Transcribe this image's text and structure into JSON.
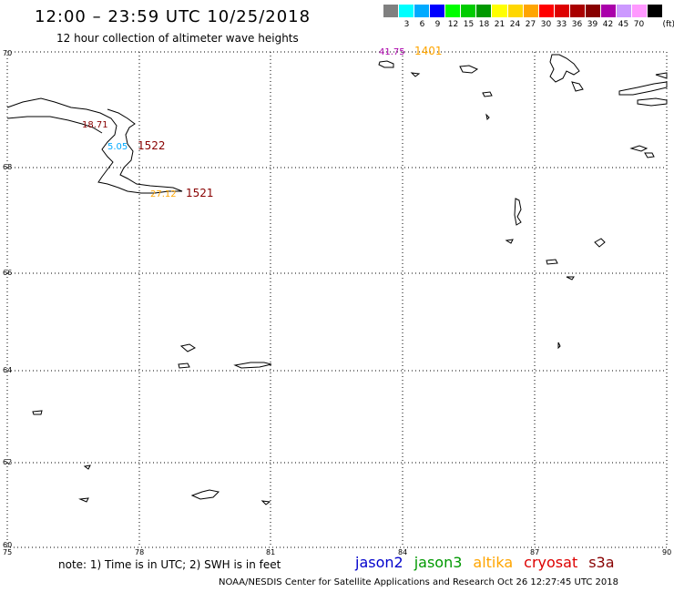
{
  "header": {
    "title": "12:00 – 23:59 UTC 10/25/2018",
    "subtitle": "12 hour collection of altimeter wave heights"
  },
  "legend": {
    "colors": [
      "#808080",
      "#00ffff",
      "#00aaff",
      "#0000ff",
      "#00ff00",
      "#00cc00",
      "#009900",
      "#ffff00",
      "#ffd700",
      "#ffa500",
      "#ff0000",
      "#dd0000",
      "#aa0000",
      "#880000",
      "#aa00aa",
      "#cc99ff",
      "#ff99ff",
      "#000000"
    ],
    "labels": [
      "3",
      "6",
      "9",
      "12",
      "15",
      "18",
      "21",
      "24",
      "27",
      "30",
      "33",
      "36",
      "39",
      "42",
      "45",
      "70"
    ],
    "unit": "(ft)"
  },
  "axes": {
    "lat_labels": [
      "70",
      "68",
      "66",
      "64",
      "62",
      "60"
    ],
    "lon_labels": [
      "75",
      "78",
      "81",
      "84",
      "87",
      "90"
    ]
  },
  "observations": [
    {
      "id": "obs-41-75",
      "text": "41.75",
      "color": "#aa00aa"
    },
    {
      "id": "obs-1401",
      "text": "1401",
      "color": "#ffa500"
    },
    {
      "id": "obs-18-71",
      "text": "18.71",
      "color": "#880000"
    },
    {
      "id": "obs-5-05",
      "text": "5.05",
      "color": "#00aaff"
    },
    {
      "id": "obs-1522",
      "text": "1522",
      "color": "#880000"
    },
    {
      "id": "obs-27-12",
      "text": "27.12",
      "color": "#ffa500"
    },
    {
      "id": "obs-1521",
      "text": "1521",
      "color": "#880000"
    }
  ],
  "footer": {
    "note": "note: 1) Time is in UTC; 2) SWH is in feet",
    "satellites": [
      {
        "name": "jason2",
        "color": "#0000cc"
      },
      {
        "name": "jason3",
        "color": "#009900"
      },
      {
        "name": "altika",
        "color": "#ffa500"
      },
      {
        "name": "cryosat",
        "color": "#dd0000"
      },
      {
        "name": "s3a",
        "color": "#880000"
      }
    ],
    "credit": "NOAA/NESDIS Center for Satellite Applications and Research     Oct 26 12:27:45 UTC 2018"
  }
}
